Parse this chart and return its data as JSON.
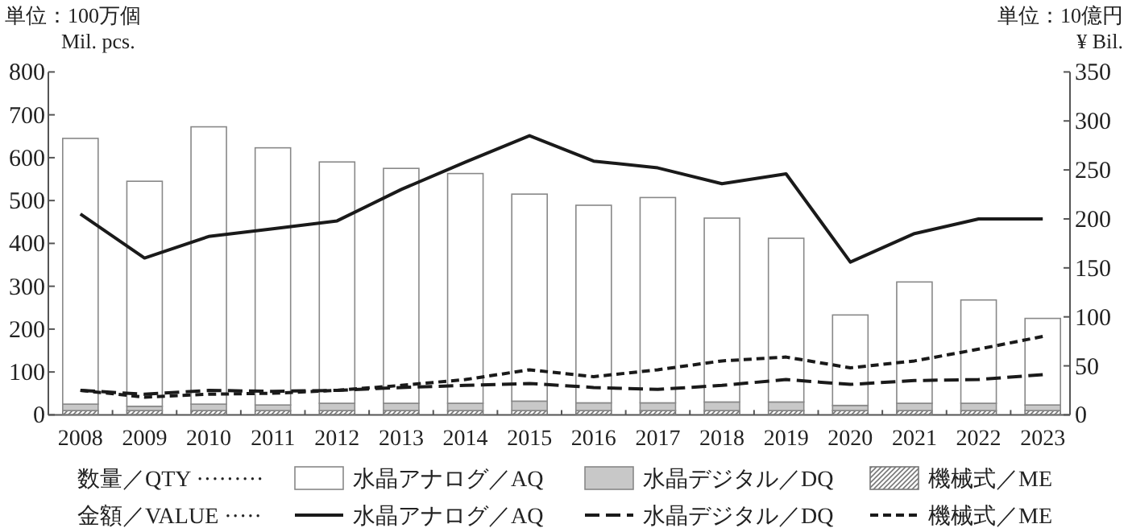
{
  "chart_data": {
    "type": "bar",
    "stacked": true,
    "legend": "bottom",
    "ylabel": "単位：100万個\nMil. pcs.",
    "y2label": "単位：10億円\n¥ Bil.",
    "categories": [
      "2008",
      "2009",
      "2010",
      "2011",
      "2012",
      "2013",
      "2014",
      "2015",
      "2016",
      "2017",
      "2018",
      "2019",
      "2020",
      "2021",
      "2022",
      "2023"
    ],
    "ylim": [
      0,
      800
    ],
    "yticks": [
      0,
      100,
      200,
      300,
      400,
      500,
      600,
      700,
      800
    ],
    "y2lim": [
      0,
      350
    ],
    "y2ticks": [
      0,
      50,
      100,
      150,
      200,
      250,
      300,
      350
    ],
    "annotations": [
      "数量／QTY ·········",
      "金額／VALUE ·····"
    ],
    "series": [
      {
        "name": "機械式／ME",
        "color": "#777777",
        "values": [
          10,
          10,
          10,
          10,
          10,
          10,
          10,
          10,
          10,
          10,
          10,
          10,
          10,
          10,
          10,
          10
        ]
      },
      {
        "name": "水晶デジタル／DQ",
        "color": "#c8c8c8",
        "values": [
          15,
          10,
          15,
          13,
          17,
          17,
          17,
          22,
          18,
          18,
          20,
          20,
          12,
          17,
          17,
          13
        ]
      },
      {
        "name": "水晶アナログ／AQ",
        "color": "#ffffff",
        "values": [
          620,
          525,
          647,
          600,
          563,
          548,
          536,
          483,
          461,
          479,
          429,
          382,
          211,
          283,
          241,
          202
        ]
      },
      {
        "name": "水晶アナログ／AQ",
        "type": "line",
        "axis": "y2",
        "line_style": "solid",
        "color": "#1a1a1a",
        "values": [
          205,
          160,
          182,
          190,
          198,
          230,
          258,
          285,
          259,
          252,
          236,
          246,
          156,
          185,
          200,
          200
        ]
      },
      {
        "name": "水晶デジタル／DQ",
        "type": "line",
        "axis": "y2",
        "line_style": "dashed",
        "color": "#1a1a1a",
        "values": [
          25,
          21,
          25,
          24,
          25,
          28,
          30,
          32,
          28,
          26,
          30,
          36,
          31,
          35,
          36,
          41
        ]
      },
      {
        "name": "機械式／ME",
        "type": "line",
        "axis": "y2",
        "line_style": "dashed",
        "color": "#1a1a1a",
        "values": [
          25,
          18,
          21,
          22,
          25,
          30,
          36,
          46,
          39,
          46,
          55,
          59,
          48,
          55,
          67,
          80
        ]
      }
    ]
  }
}
